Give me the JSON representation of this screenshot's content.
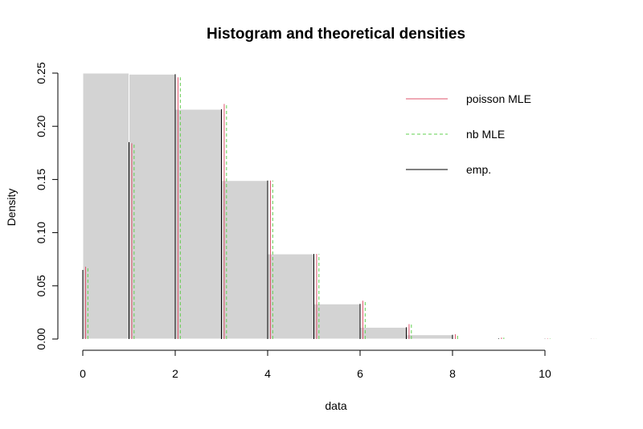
{
  "chart_data": {
    "type": "bar",
    "title": "Histogram and theoretical densities",
    "xlabel": "data",
    "ylabel": "Density",
    "xlim": [
      0,
      11
    ],
    "ylim": [
      0,
      0.25
    ],
    "x_ticks": [
      "0",
      "2",
      "4",
      "6",
      "8",
      "10"
    ],
    "y_ticks": [
      "0.00",
      "0.05",
      "0.10",
      "0.15",
      "0.20",
      "0.25"
    ],
    "histogram": {
      "breaks": [
        0,
        1,
        2,
        3,
        4,
        5,
        6,
        7,
        8,
        9,
        10,
        11
      ],
      "density": [
        0.25,
        0.249,
        0.216,
        0.149,
        0.08,
        0.033,
        0.011,
        0.004,
        0.0005,
        0.0002,
        0.0001
      ],
      "fill": "#d3d3d3"
    },
    "series": [
      {
        "name": "poisson MLE",
        "color": "#df536b",
        "dash": "solid",
        "x": [
          0,
          1,
          2,
          3,
          4,
          5,
          6,
          7,
          8,
          9,
          10,
          11
        ],
        "values": [
          0.068,
          0.184,
          0.246,
          0.221,
          0.149,
          0.08,
          0.036,
          0.014,
          0.0045,
          0.0013,
          0.0004,
          0.0001
        ]
      },
      {
        "name": "nb MLE",
        "color": "#61d04f",
        "dash": "dashed",
        "x": [
          0,
          1,
          2,
          3,
          4,
          5,
          6,
          7,
          8,
          9,
          10,
          11
        ],
        "values": [
          0.068,
          0.184,
          0.246,
          0.221,
          0.149,
          0.08,
          0.036,
          0.014,
          0.0045,
          0.0013,
          0.0004,
          0.0001
        ]
      },
      {
        "name": "emp.",
        "color": "#000000",
        "dash": "solid",
        "x": [
          0,
          1,
          2,
          3,
          4,
          5,
          6,
          7,
          8,
          9,
          10,
          11
        ],
        "values": [
          0.065,
          0.185,
          0.249,
          0.216,
          0.149,
          0.08,
          0.033,
          0.011,
          0.004,
          0.0005,
          0.0002,
          0.0001
        ]
      }
    ],
    "legend_position": "top-right",
    "grid": false
  }
}
